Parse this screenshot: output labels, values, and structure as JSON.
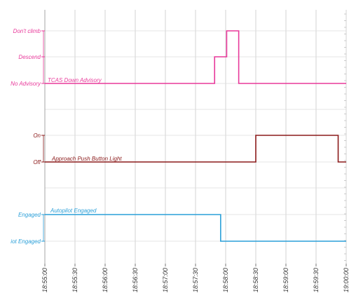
{
  "chart_data": {
    "type": "line",
    "title": "",
    "xlabel": "",
    "ylabel": "",
    "x_ticks": [
      "18:55:00",
      "18:55:30",
      "18:56:00",
      "18:56:30",
      "18:57:00",
      "18:57:30",
      "18:58:00",
      "18:58:30",
      "18:59:00",
      "18:59:30",
      "19:00:00"
    ],
    "x_range": [
      "18:55:00",
      "19:00:00"
    ],
    "grid": true,
    "panels": [
      {
        "series_name": "TCAS Down Advisory",
        "color": "#e8399a",
        "levels": [
          "No Advisory",
          "Descend",
          "Don't climb"
        ],
        "steps": [
          {
            "t": "18:55:00",
            "level": "No Advisory"
          },
          {
            "t": "18:57:49",
            "level": "Descend"
          },
          {
            "t": "18:58:01",
            "level": "Don't climb"
          },
          {
            "t": "18:58:13",
            "level": "No Advisory"
          },
          {
            "t": "19:00:00",
            "level": "No Advisory"
          }
        ]
      },
      {
        "series_name": "Approach Push Button Light",
        "color": "#8b1a1a",
        "levels": [
          "Off",
          "On"
        ],
        "steps": [
          {
            "t": "18:55:00",
            "level": "Off"
          },
          {
            "t": "18:58:30",
            "level": "On"
          },
          {
            "t": "18:59:52",
            "level": "Off"
          },
          {
            "t": "19:00:00",
            "level": "Off"
          }
        ]
      },
      {
        "series_name": "Autopilot Engaged",
        "color": "#2a9fd8",
        "levels": [
          "iot Engaged",
          "Engaged"
        ],
        "steps": [
          {
            "t": "18:55:00",
            "level": "Engaged"
          },
          {
            "t": "18:57:55",
            "level": "iot Engaged"
          },
          {
            "t": "19:00:00",
            "level": "iot Engaged"
          }
        ]
      }
    ]
  }
}
